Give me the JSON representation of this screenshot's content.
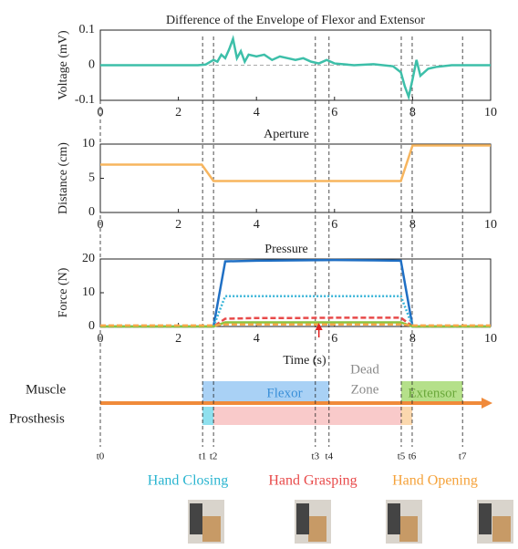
{
  "chart_data": [
    {
      "type": "line",
      "title": "Difference of the Envelope of Flexor and Extensor",
      "ylabel": "Voltage (mV)",
      "x": [
        0,
        0.5,
        1,
        1.5,
        2,
        2.5,
        2.7,
        2.9,
        3.0,
        3.1,
        3.2,
        3.3,
        3.4,
        3.5,
        3.6,
        3.7,
        3.8,
        4.0,
        4.2,
        4.4,
        4.6,
        4.8,
        5.0,
        5.2,
        5.4,
        5.6,
        5.8,
        6.0,
        6.5,
        7.0,
        7.5,
        7.7,
        7.8,
        7.9,
        8.0,
        8.1,
        8.2,
        8.4,
        8.6,
        9.0,
        9.5,
        10
      ],
      "series": [
        {
          "color": "#3dbfa9",
          "values": [
            0,
            0,
            0,
            0,
            0,
            0,
            0.002,
            0.015,
            0.01,
            0.03,
            0.02,
            0.045,
            0.075,
            0.02,
            0.04,
            0.01,
            0.03,
            0.025,
            0.03,
            0.015,
            0.025,
            0.02,
            0.015,
            0.02,
            0.01,
            0.005,
            0.015,
            0.005,
            0,
            0.003,
            -0.003,
            -0.02,
            -0.06,
            -0.09,
            -0.04,
            0.015,
            -0.03,
            -0.01,
            -0.005,
            0,
            0,
            0
          ]
        }
      ],
      "xlim": [
        0,
        10
      ],
      "ylim": [
        -0.1,
        0.1
      ],
      "xticks": [
        0,
        2,
        4,
        6,
        8,
        10
      ],
      "yticks": [
        -0.1,
        0,
        0.1
      ],
      "zero_line": true
    },
    {
      "type": "line",
      "title": "Aperture",
      "ylabel": "Distance (cm)",
      "x": [
        0,
        2.6,
        2.9,
        7.7,
        8.0,
        10
      ],
      "series": [
        {
          "color": "#f7b55e",
          "values": [
            7,
            7,
            4.6,
            4.6,
            9.8,
            9.8
          ]
        }
      ],
      "xlim": [
        0,
        10
      ],
      "ylim": [
        0,
        10
      ],
      "xticks": [
        0,
        2,
        4,
        6,
        8,
        10
      ],
      "yticks": [
        0,
        5,
        10
      ]
    },
    {
      "type": "line",
      "title": "Pressure",
      "ylabel": "Force (N)",
      "xlabel": "Time (s)",
      "x": [
        0,
        2.9,
        3.2,
        4,
        5,
        6,
        7,
        7.7,
        8,
        10
      ],
      "series": [
        {
          "color": "#1f6fc4",
          "style": "solid",
          "values": [
            0,
            0,
            19.3,
            19.5,
            19.6,
            19.7,
            19.6,
            19.5,
            0,
            0
          ]
        },
        {
          "color": "#3bb5d8",
          "style": "dotted",
          "values": [
            0,
            0,
            9,
            9,
            9,
            9,
            9,
            9,
            0,
            0
          ]
        },
        {
          "color": "#e84a4a",
          "style": "dashed",
          "values": [
            0,
            0,
            2.3,
            2.5,
            2.5,
            2.6,
            2.6,
            2.6,
            0,
            0
          ]
        },
        {
          "color": "#8ac43f",
          "style": "solid",
          "values": [
            0,
            0,
            1.2,
            1.2,
            1.2,
            1.2,
            1.2,
            1.2,
            0,
            0
          ]
        },
        {
          "color": "#f7a84a",
          "style": "dashed",
          "values": [
            0.3,
            0.3,
            0.6,
            0.6,
            0.6,
            0.6,
            0.6,
            0.6,
            0.3,
            0.3
          ]
        }
      ],
      "xlim": [
        0,
        10
      ],
      "ylim": [
        0,
        20
      ],
      "xticks": [
        0,
        2,
        4,
        6,
        8,
        10
      ],
      "yticks": [
        0,
        10,
        20
      ],
      "arrow_x": 5.6,
      "arrow_color": "#e02020"
    }
  ],
  "timeline": {
    "rows": [
      "Muscle",
      "Prosthesis"
    ],
    "muscle": [
      {
        "label": "Flexor",
        "start": 2.62,
        "end": 5.86,
        "color": "#a9d1f5",
        "text_color": "#3a8fd8"
      },
      {
        "label": [
          "Dead",
          "Zone"
        ],
        "start": 5.86,
        "end": 7.71,
        "text_color": "#8a8a8a"
      },
      {
        "label": "Extensor",
        "start": 7.71,
        "end": 9.28,
        "color": "#b5e08a",
        "text_color": "#6aa83a"
      }
    ],
    "prosthesis": [
      {
        "start": 2.62,
        "end": 2.9,
        "color": "#8fe0ee"
      },
      {
        "start": 2.9,
        "end": 7.71,
        "color": "#f9caca"
      },
      {
        "start": 7.71,
        "end": 7.99,
        "color": "#fbd8ae"
      }
    ],
    "arrow_color": "#f08a3a",
    "markers": [
      {
        "label": "t0",
        "time": 0
      },
      {
        "label": "t1",
        "time": 2.62
      },
      {
        "label": "t2",
        "time": 2.9
      },
      {
        "label": "t3",
        "time": 5.51
      },
      {
        "label": "t4",
        "time": 5.86
      },
      {
        "label": "t5",
        "time": 7.71
      },
      {
        "label": "t6",
        "time": 7.99
      },
      {
        "label": "t7",
        "time": 9.28
      }
    ],
    "phases": [
      "Hand Closing",
      "Hand Grasping",
      "Hand Opening"
    ]
  }
}
